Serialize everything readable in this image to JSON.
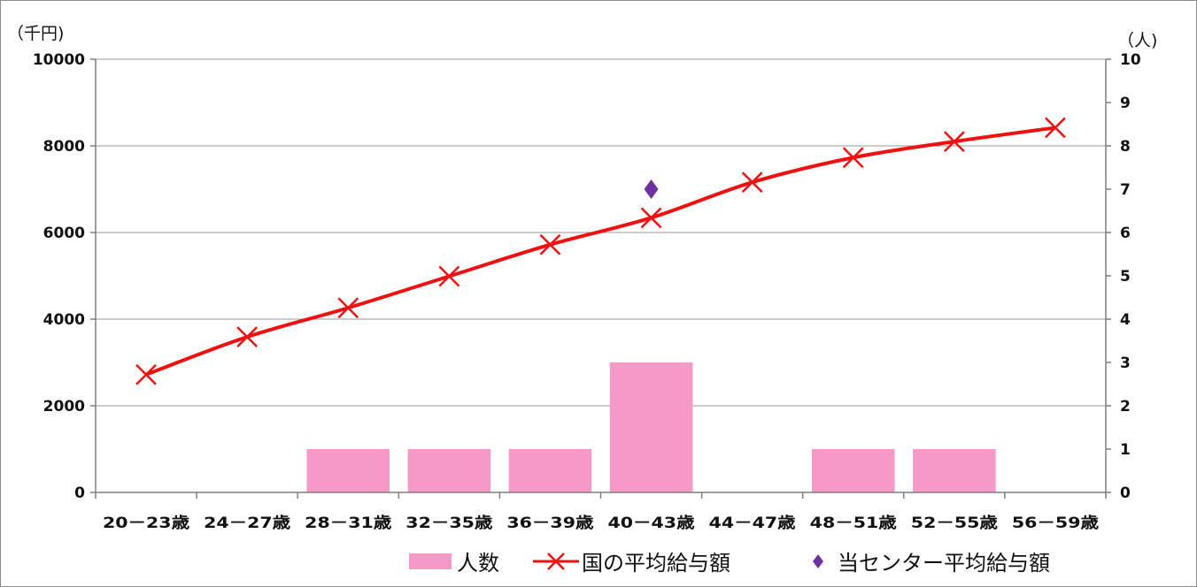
{
  "chart_data": {
    "type": "bar",
    "categories": [
      "20－23歳",
      "24－27歳",
      "28－31歳",
      "32－35歳",
      "36－39歳",
      "40－43歳",
      "44－47歳",
      "48－51歳",
      "52－55歳",
      "56－59歳"
    ],
    "series": [
      {
        "name": "人数",
        "type": "bar",
        "axis": "right",
        "color": "#f59ac7",
        "values": [
          0,
          0,
          1,
          1,
          1,
          3,
          0,
          1,
          1,
          0
        ]
      },
      {
        "name": "国の平均給与額",
        "type": "line",
        "axis": "left",
        "color": "#ee1111",
        "marker": "x",
        "values": [
          2720,
          3590,
          4260,
          4990,
          5720,
          6340,
          7160,
          7730,
          8100,
          8420
        ]
      },
      {
        "name": "当センター平均給与額",
        "type": "scatter",
        "axis": "left",
        "color": "#7030a0",
        "marker": "diamond",
        "values": [
          null,
          null,
          null,
          null,
          null,
          7000,
          null,
          null,
          null,
          null
        ]
      }
    ],
    "y_left": {
      "unit_label": "（千円)",
      "ylim": [
        0,
        10000
      ],
      "ticks": [
        0,
        2000,
        4000,
        6000,
        8000,
        10000
      ]
    },
    "y_right": {
      "unit_label": "（人)",
      "ylim": [
        0,
        10
      ],
      "ticks": [
        0,
        1,
        2,
        3,
        4,
        5,
        6,
        7,
        8,
        9,
        10
      ]
    },
    "grid": true,
    "legend_position": "bottom-right"
  }
}
